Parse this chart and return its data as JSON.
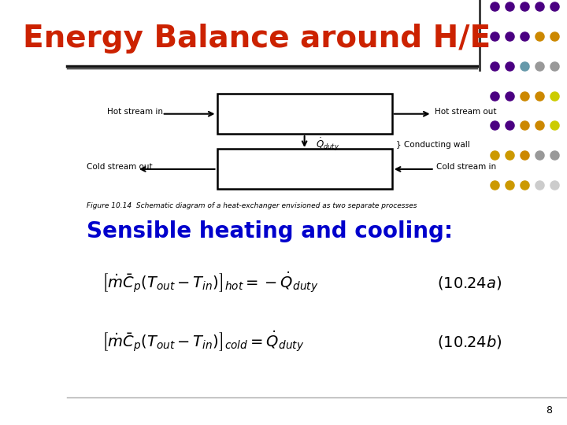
{
  "title": "Energy Balance around H/E",
  "title_color": "#CC2200",
  "title_fontsize": 28,
  "subtitle": "Sensible heating and cooling:",
  "subtitle_color": "#0000CC",
  "subtitle_fontsize": 20,
  "bg_color": "#FFFFFF",
  "slide_number": "8",
  "eq1": "$\\left[\\dot{m}\\bar{C}_p\\left(T_{out}-T_{in}\\right)\\right]_{hot} = -\\dot{Q}_{duty}$",
  "eq2": "$\\left[\\dot{m}\\bar{C}_p\\left(T_{out}-T_{in}\\right)\\right]_{cold} = \\dot{Q}_{duty}$",
  "eq1_label": "$(10.24a)$",
  "eq2_label": "$(10.24b)$",
  "dot_colors": [
    [
      "#4B0082",
      "#4B0082",
      "#4B0082",
      "#4B0082",
      "#4B0082"
    ],
    [
      "#4B0082",
      "#4B0082",
      "#4B0082",
      "#CC8800",
      "#CC8800"
    ],
    [
      "#4B0082",
      "#4B0082",
      "#6699AA",
      "#999999",
      "#999999"
    ],
    [
      "#4B0082",
      "#4B0082",
      "#CC8800",
      "#CC8800",
      "#CCCC00"
    ],
    [
      "#4B0082",
      "#4B0082",
      "#CC8800",
      "#CC8800",
      "#CCCC00"
    ],
    [
      "#CC9900",
      "#CC9900",
      "#CC8800",
      "#999999",
      "#999999"
    ],
    [
      "#CC9900",
      "#CC9900",
      "#CC9900",
      "#CCCCCC",
      "#CCCCCC"
    ]
  ]
}
